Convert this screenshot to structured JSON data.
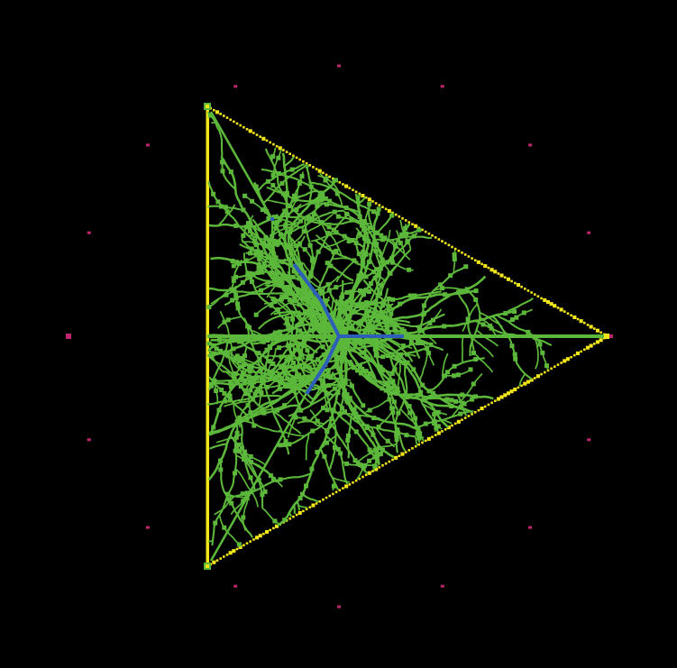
{
  "scene": {
    "background": "#000000",
    "colors": {
      "boundary": "#f2e61a",
      "growth": "#5cb83a",
      "seed": "#2e5fb8",
      "marker": "#c0266e"
    },
    "marker_count": 16,
    "branch_count": 28,
    "random_seed": 7
  }
}
